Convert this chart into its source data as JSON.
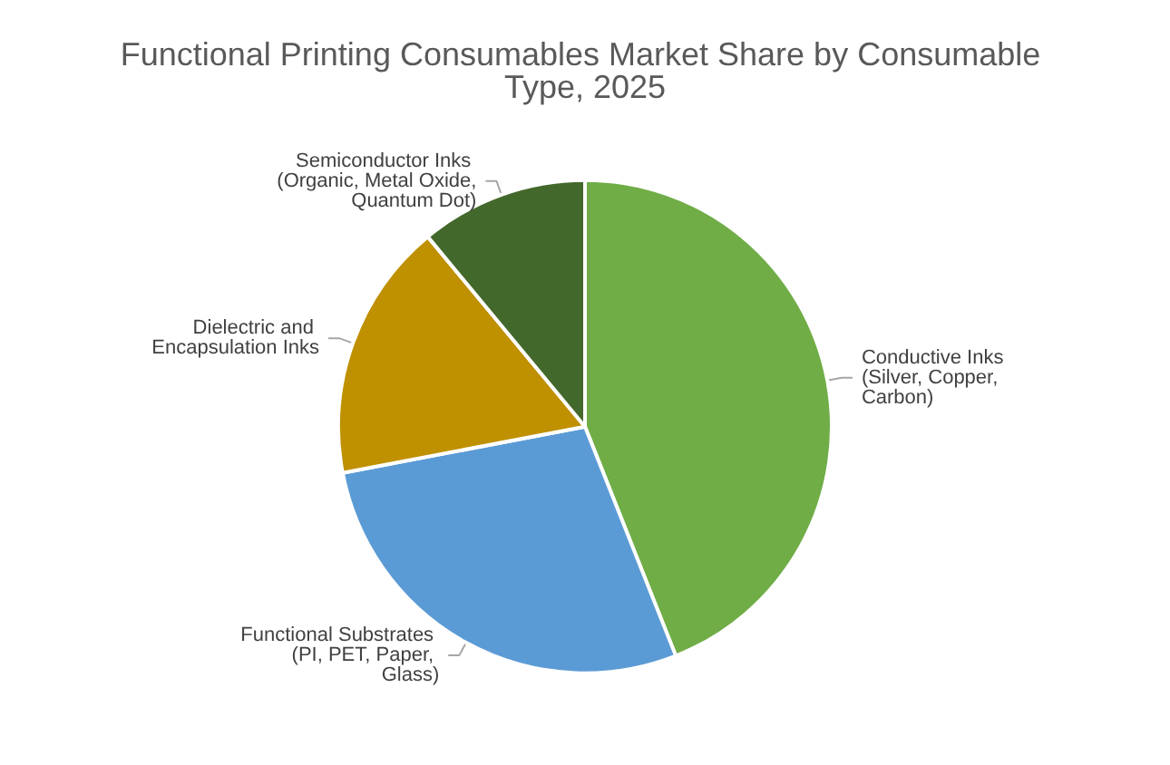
{
  "chart_data": {
    "type": "pie",
    "title": "Functional Printing Consumables Market Share by Consumable Type, 2025",
    "categories": [
      "Conductive Inks (Silver, Copper, Carbon)",
      "Functional Substrates (PI, PET, Paper, Glass)",
      "Dielectric and Encapsulation Inks",
      "Semiconductor Inks (Organic, Metal Oxide, Quantum Dot)"
    ],
    "values": [
      44,
      28,
      17,
      11
    ],
    "colors": [
      "#70ad47",
      "#5b9bd5",
      "#bf9000",
      "#43682b"
    ],
    "legend": false
  }
}
